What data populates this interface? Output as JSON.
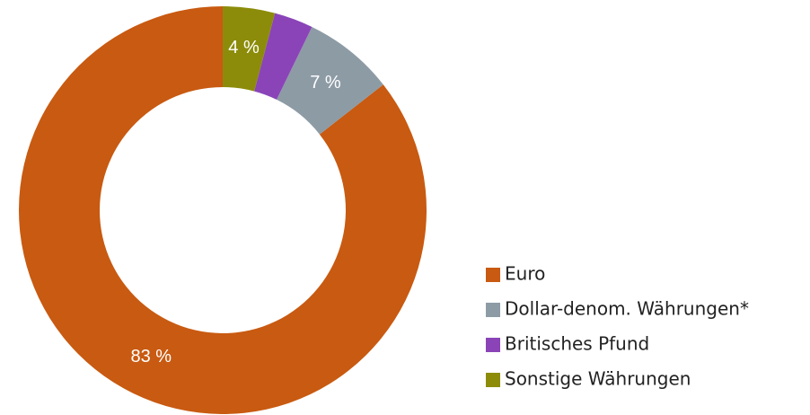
{
  "chart_data": {
    "type": "donut",
    "categories": [
      "Euro",
      "Dollar-denom. Währungen*",
      "Britisches Pfund",
      "Sonstige Währungen"
    ],
    "values": [
      83,
      7,
      3,
      4
    ],
    "value_labels": [
      "83 %",
      "7 %",
      null,
      "4 %"
    ],
    "colors": [
      "#c85a11",
      "#8d9ba5",
      "#8a44b8",
      "#8c8c0a"
    ],
    "legend": "right"
  }
}
